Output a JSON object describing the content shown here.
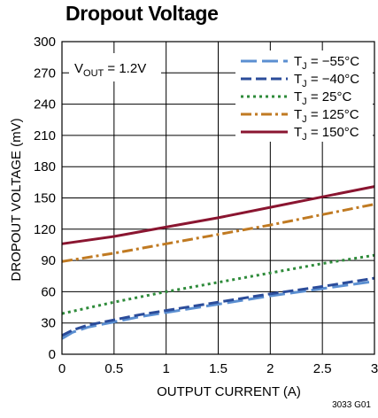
{
  "chart_data": {
    "type": "line",
    "title": "Dropout Voltage",
    "annotation_vout": {
      "main": "V",
      "sub": "OUT",
      "rest": " = 1.2V"
    },
    "xlabel": "OUTPUT CURRENT (A)",
    "ylabel": "DROPOUT VOLTAGE (mV)",
    "xlim": [
      0,
      3
    ],
    "ylim": [
      0,
      300
    ],
    "xticks": [
      0,
      0.5,
      1,
      1.5,
      2,
      2.5,
      3
    ],
    "xtick_labels": [
      "0",
      "0.5",
      "1",
      "1.5",
      "2",
      "2.5",
      "3"
    ],
    "yticks": [
      0,
      30,
      60,
      90,
      120,
      150,
      180,
      210,
      240,
      270,
      300
    ],
    "ytick_labels": [
      "0",
      "30",
      "60",
      "90",
      "120",
      "150",
      "180",
      "210",
      "240",
      "270",
      "300"
    ],
    "grid": true,
    "legend_position": "top-right",
    "figure_id": "3033 G01",
    "series": [
      {
        "name": "TJ = −55°C",
        "label_main": "T",
        "label_sub": "J",
        "label_rest": " = −55°C",
        "color": "#5b8fd1",
        "dash": "long-dash",
        "x": [
          0,
          0.1,
          0.25,
          0.5,
          0.75,
          1,
          1.5,
          2,
          2.5,
          3
        ],
        "y": [
          15,
          21,
          26,
          31,
          36,
          40,
          48,
          56,
          63,
          70
        ]
      },
      {
        "name": "TJ = −40°C",
        "label_main": "T",
        "label_sub": "J",
        "label_rest": " = −40°C",
        "color": "#2b4c9a",
        "dash": "dash",
        "x": [
          0,
          0.1,
          0.25,
          0.5,
          0.75,
          1,
          1.5,
          2,
          2.5,
          3
        ],
        "y": [
          18,
          23,
          28,
          33,
          38,
          42,
          50,
          58,
          65,
          73
        ]
      },
      {
        "name": "TJ = 25°C",
        "label_main": "T",
        "label_sub": "J",
        "label_rest": " = 25°C",
        "color": "#2e8b3a",
        "dash": "dot",
        "x": [
          0,
          0.5,
          1,
          1.5,
          2,
          2.5,
          3
        ],
        "y": [
          39,
          50,
          60,
          69,
          78,
          87,
          95
        ]
      },
      {
        "name": "TJ = 125°C",
        "label_main": "T",
        "label_sub": "J",
        "label_rest": " = 125°C",
        "color": "#c07a22",
        "dash": "dash-dot",
        "x": [
          0,
          0.5,
          1,
          1.5,
          2,
          2.5,
          3
        ],
        "y": [
          89,
          97,
          106,
          115,
          124,
          134,
          144
        ]
      },
      {
        "name": "TJ = 150°C",
        "label_main": "T",
        "label_sub": "J",
        "label_rest": " = 150°C",
        "color": "#8a1530",
        "dash": "solid",
        "x": [
          0,
          0.5,
          1,
          1.5,
          2,
          2.5,
          3
        ],
        "y": [
          106,
          113,
          122,
          131,
          141,
          151,
          161
        ]
      }
    ]
  }
}
